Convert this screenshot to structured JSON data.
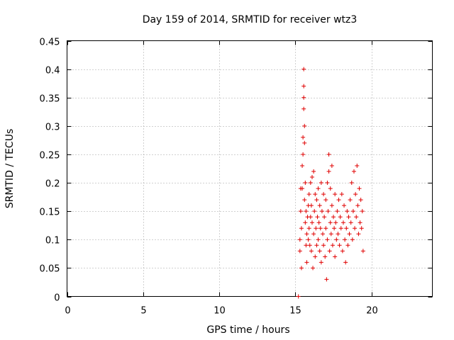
{
  "chart_data": {
    "type": "scatter",
    "title": "Day 159 of 2014, SRMTID for receiver wtz3",
    "xlabel": "GPS time / hours",
    "ylabel": "SRMTID / TECUs",
    "xlim": [
      0,
      24
    ],
    "ylim": [
      0,
      0.45
    ],
    "xticks": [
      "0",
      "5",
      "10",
      "15",
      "20"
    ],
    "yticks": [
      "0",
      "0.05",
      "0.1",
      "0.15",
      "0.2",
      "0.25",
      "0.3",
      "0.35",
      "0.4",
      "0.45"
    ],
    "grid": true,
    "marker": "+",
    "series": [
      {
        "color": "#e00000",
        "points": [
          [
            15.2,
            0.0
          ],
          [
            15.3,
            0.08
          ],
          [
            15.3,
            0.1
          ],
          [
            15.35,
            0.15
          ],
          [
            15.35,
            0.19
          ],
          [
            15.4,
            0.12
          ],
          [
            15.4,
            0.05
          ],
          [
            15.45,
            0.19
          ],
          [
            15.45,
            0.23
          ],
          [
            15.5,
            0.25
          ],
          [
            15.5,
            0.28
          ],
          [
            15.55,
            0.33
          ],
          [
            15.55,
            0.35
          ],
          [
            15.55,
            0.37
          ],
          [
            15.55,
            0.4
          ],
          [
            15.6,
            0.3
          ],
          [
            15.6,
            0.27
          ],
          [
            15.6,
            0.17
          ],
          [
            15.65,
            0.13
          ],
          [
            15.65,
            0.2
          ],
          [
            15.7,
            0.09
          ],
          [
            15.7,
            0.15
          ],
          [
            15.75,
            0.11
          ],
          [
            15.75,
            0.06
          ],
          [
            15.8,
            0.14
          ],
          [
            15.85,
            0.16
          ],
          [
            15.85,
            0.1
          ],
          [
            15.9,
            0.12
          ],
          [
            15.9,
            0.18
          ],
          [
            15.95,
            0.09
          ],
          [
            16.0,
            0.14
          ],
          [
            16.0,
            0.2
          ],
          [
            16.05,
            0.16
          ],
          [
            16.05,
            0.08
          ],
          [
            16.1,
            0.13
          ],
          [
            16.1,
            0.21
          ],
          [
            16.15,
            0.05
          ],
          [
            16.2,
            0.11
          ],
          [
            16.2,
            0.22
          ],
          [
            16.25,
            0.15
          ],
          [
            16.3,
            0.07
          ],
          [
            16.3,
            0.18
          ],
          [
            16.35,
            0.12
          ],
          [
            16.4,
            0.17
          ],
          [
            16.4,
            0.09
          ],
          [
            16.45,
            0.14
          ],
          [
            16.5,
            0.1
          ],
          [
            16.5,
            0.19
          ],
          [
            16.55,
            0.13
          ],
          [
            16.6,
            0.08
          ],
          [
            16.6,
            0.16
          ],
          [
            16.65,
            0.12
          ],
          [
            16.7,
            0.2
          ],
          [
            16.7,
            0.06
          ],
          [
            16.75,
            0.15
          ],
          [
            16.8,
            0.11
          ],
          [
            16.85,
            0.18
          ],
          [
            16.85,
            0.09
          ],
          [
            16.9,
            0.14
          ],
          [
            16.95,
            0.07
          ],
          [
            17.0,
            0.12
          ],
          [
            17.0,
            0.17
          ],
          [
            17.05,
            0.03
          ],
          [
            17.1,
            0.1
          ],
          [
            17.1,
            0.2
          ],
          [
            17.15,
            0.15
          ],
          [
            17.2,
            0.22
          ],
          [
            17.2,
            0.25
          ],
          [
            17.25,
            0.08
          ],
          [
            17.3,
            0.13
          ],
          [
            17.3,
            0.19
          ],
          [
            17.35,
            0.11
          ],
          [
            17.4,
            0.16
          ],
          [
            17.4,
            0.23
          ],
          [
            17.45,
            0.09
          ],
          [
            17.5,
            0.14
          ],
          [
            17.55,
            0.12
          ],
          [
            17.6,
            0.18
          ],
          [
            17.6,
            0.07
          ],
          [
            17.65,
            0.13
          ],
          [
            17.7,
            0.1
          ],
          [
            17.75,
            0.15
          ],
          [
            17.8,
            0.11
          ],
          [
            17.85,
            0.17
          ],
          [
            17.9,
            0.09
          ],
          [
            17.95,
            0.14
          ],
          [
            18.0,
            0.12
          ],
          [
            18.05,
            0.18
          ],
          [
            18.1,
            0.08
          ],
          [
            18.15,
            0.13
          ],
          [
            18.2,
            0.16
          ],
          [
            18.25,
            0.1
          ],
          [
            18.3,
            0.06
          ],
          [
            18.35,
            0.12
          ],
          [
            18.4,
            0.15
          ],
          [
            18.45,
            0.09
          ],
          [
            18.5,
            0.14
          ],
          [
            18.55,
            0.11
          ],
          [
            18.6,
            0.17
          ],
          [
            18.65,
            0.13
          ],
          [
            18.7,
            0.2
          ],
          [
            18.75,
            0.1
          ],
          [
            18.8,
            0.15
          ],
          [
            18.85,
            0.22
          ],
          [
            18.9,
            0.12
          ],
          [
            18.95,
            0.18
          ],
          [
            19.0,
            0.14
          ],
          [
            19.05,
            0.23
          ],
          [
            19.1,
            0.16
          ],
          [
            19.15,
            0.11
          ],
          [
            19.2,
            0.19
          ],
          [
            19.25,
            0.13
          ],
          [
            19.3,
            0.17
          ],
          [
            19.35,
            0.12
          ],
          [
            19.4,
            0.15
          ],
          [
            19.45,
            0.08
          ]
        ]
      }
    ]
  }
}
